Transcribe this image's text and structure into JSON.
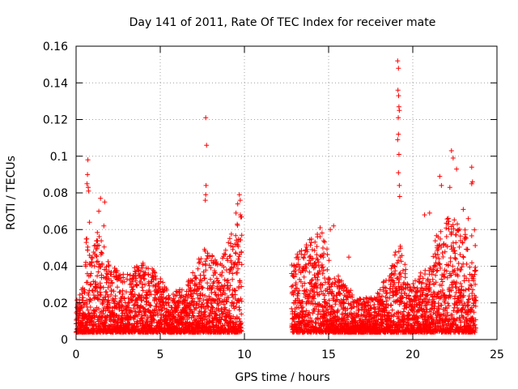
{
  "chart_data": {
    "type": "scatter",
    "title": "Day 141 of 2011, Rate Of TEC Index for receiver mate",
    "xlabel": "GPS time / hours",
    "ylabel": "ROTI / TECUs",
    "xlim": [
      0,
      25
    ],
    "ylim": [
      0,
      0.16
    ],
    "x_ticks": [
      0,
      5,
      10,
      15,
      20,
      25
    ],
    "x_tick_labels": [
      "0",
      "5",
      "10",
      "15",
      "20",
      "25"
    ],
    "y_ticks": [
      0,
      0.02,
      0.04,
      0.06,
      0.08,
      0.1,
      0.12,
      0.14,
      0.16
    ],
    "y_tick_labels": [
      "0",
      "0.02",
      "0.04",
      "0.06",
      "0.08",
      "0.1",
      "0.12",
      "0.14",
      "0.16"
    ],
    "grid": true,
    "marker": "+",
    "marker_color": "#ff0000",
    "series": [
      {
        "name": "ROTI",
        "segments": [
          {
            "x_start": 0.0,
            "x_end": 9.85,
            "min": 0.004
          },
          {
            "x_start": 12.8,
            "x_end": 23.75,
            "min": 0.004
          }
        ],
        "envelope": [
          [
            0.0,
            0.022
          ],
          [
            0.5,
            0.03
          ],
          [
            0.6,
            0.06
          ],
          [
            0.9,
            0.045
          ],
          [
            1.2,
            0.06
          ],
          [
            1.7,
            0.05
          ],
          [
            2.2,
            0.04
          ],
          [
            3.0,
            0.035
          ],
          [
            4.0,
            0.045
          ],
          [
            5.0,
            0.035
          ],
          [
            5.5,
            0.025
          ],
          [
            6.5,
            0.03
          ],
          [
            7.2,
            0.045
          ],
          [
            7.8,
            0.052
          ],
          [
            8.5,
            0.04
          ],
          [
            9.3,
            0.06
          ],
          [
            9.85,
            0.07
          ],
          [
            12.8,
            0.045
          ],
          [
            13.5,
            0.05
          ],
          [
            14.0,
            0.06
          ],
          [
            14.6,
            0.06
          ],
          [
            15.2,
            0.04
          ],
          [
            16.0,
            0.03
          ],
          [
            17.0,
            0.022
          ],
          [
            17.8,
            0.025
          ],
          [
            18.5,
            0.035
          ],
          [
            19.2,
            0.055
          ],
          [
            19.8,
            0.03
          ],
          [
            20.8,
            0.04
          ],
          [
            21.5,
            0.06
          ],
          [
            22.2,
            0.07
          ],
          [
            23.0,
            0.06
          ],
          [
            23.75,
            0.06
          ]
        ],
        "outliers": [
          [
            0.7,
            0.098
          ],
          [
            0.68,
            0.09
          ],
          [
            0.72,
            0.083
          ],
          [
            0.65,
            0.085
          ],
          [
            0.74,
            0.081
          ],
          [
            0.8,
            0.064
          ],
          [
            1.45,
            0.077
          ],
          [
            1.7,
            0.075
          ],
          [
            1.65,
            0.062
          ],
          [
            1.35,
            0.07
          ],
          [
            7.7,
            0.121
          ],
          [
            7.75,
            0.106
          ],
          [
            7.72,
            0.084
          ],
          [
            7.7,
            0.079
          ],
          [
            7.68,
            0.076
          ],
          [
            9.7,
            0.079
          ],
          [
            9.75,
            0.076
          ],
          [
            9.6,
            0.074
          ],
          [
            9.5,
            0.069
          ],
          [
            19.1,
            0.152
          ],
          [
            19.15,
            0.148
          ],
          [
            19.12,
            0.136
          ],
          [
            19.16,
            0.133
          ],
          [
            19.18,
            0.127
          ],
          [
            19.2,
            0.125
          ],
          [
            19.14,
            0.121
          ],
          [
            19.15,
            0.112
          ],
          [
            19.1,
            0.109
          ],
          [
            19.18,
            0.101
          ],
          [
            19.15,
            0.091
          ],
          [
            19.2,
            0.084
          ],
          [
            19.22,
            0.078
          ],
          [
            22.3,
            0.103
          ],
          [
            22.4,
            0.099
          ],
          [
            22.6,
            0.093
          ],
          [
            23.5,
            0.094
          ],
          [
            23.55,
            0.086
          ],
          [
            23.5,
            0.085
          ],
          [
            21.6,
            0.089
          ],
          [
            21.7,
            0.084
          ],
          [
            22.2,
            0.083
          ],
          [
            23.0,
            0.071
          ],
          [
            20.7,
            0.068
          ],
          [
            21.0,
            0.069
          ],
          [
            23.3,
            0.066
          ],
          [
            15.3,
            0.062
          ],
          [
            15.1,
            0.06
          ],
          [
            14.5,
            0.061
          ],
          [
            16.2,
            0.045
          ]
        ]
      }
    ]
  }
}
